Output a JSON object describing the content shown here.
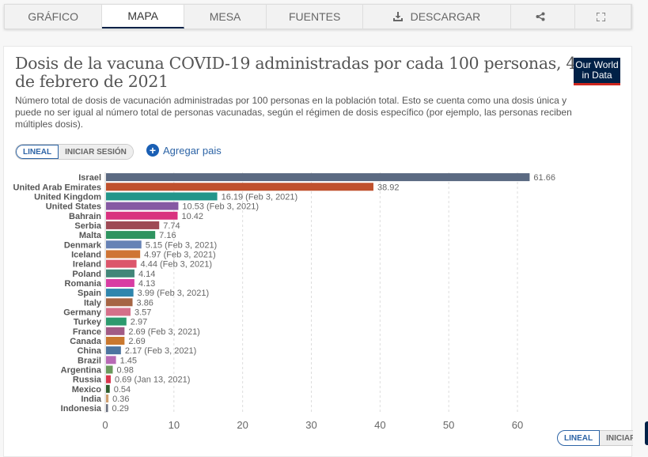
{
  "tabs": [
    {
      "label": "GRÁFICO",
      "icon": null,
      "active": false
    },
    {
      "label": "MAPA",
      "icon": null,
      "active": true
    },
    {
      "label": "MESA",
      "icon": null,
      "active": false
    },
    {
      "label": "FUENTES",
      "icon": null,
      "active": false
    },
    {
      "label": "DESCARGAR",
      "icon": "download-icon",
      "active": false
    },
    {
      "label": "",
      "icon": "share-icon",
      "active": false
    },
    {
      "label": "",
      "icon": "fullscreen-icon",
      "active": false
    }
  ],
  "header": {
    "title": "Dosis de la vacuna COVID-19 administradas por cada 100 personas, 4 de febrero de 2021",
    "subtitle": "Número total de dosis de vacunación administradas por 100 personas en la población total. Esto se cuenta como una dosis única y puede no ser igual al número total de personas vacunadas, según el régimen de dosis específico (por ejemplo, las personas reciben múltiples dosis).",
    "logo_line1": "Our World",
    "logo_line2": "in Data"
  },
  "controls": {
    "scale_linear": "LINEAL",
    "scale_log": "INICIAR SESIÓN",
    "add_country": "Agregar pais",
    "bottom_scale_linear": "LINEAL",
    "bottom_scale_log": "INICIAR"
  },
  "colors": {
    "brand": "#002147",
    "brand_accent": "#ce261e",
    "link": "#2d64a6"
  },
  "chart_data": {
    "type": "bar",
    "orientation": "horizontal",
    "title": "Dosis de la vacuna COVID-19 administradas por cada 100 personas, 4 de febrero de 2021",
    "xlabel": "",
    "ylabel": "",
    "xlim": [
      0,
      65
    ],
    "xticks": [
      0,
      10,
      20,
      30,
      40,
      50,
      60
    ],
    "grid": "vertical-dashed",
    "categories": [
      "Israel",
      "United Arab Emirates",
      "United Kingdom",
      "United States",
      "Bahrain",
      "Serbia",
      "Malta",
      "Denmark",
      "Iceland",
      "Ireland",
      "Poland",
      "Romania",
      "Spain",
      "Italy",
      "Germany",
      "Turkey",
      "France",
      "Canada",
      "China",
      "Brazil",
      "Argentina",
      "Russia",
      "Mexico",
      "India",
      "Indonesia"
    ],
    "values": [
      61.66,
      38.92,
      16.19,
      10.53,
      10.42,
      7.74,
      7.16,
      5.15,
      4.97,
      4.44,
      4.14,
      4.13,
      3.99,
      3.86,
      3.57,
      2.97,
      2.69,
      2.69,
      2.17,
      1.45,
      0.98,
      0.69,
      0.54,
      0.36,
      0.29
    ],
    "notes": [
      "",
      "",
      "(Feb 3, 2021)",
      "(Feb 3, 2021)",
      "",
      "",
      "",
      "(Feb 3, 2021)",
      "(Feb 3, 2021)",
      "(Feb 3, 2021)",
      "",
      "",
      "(Feb 3, 2021)",
      "",
      "",
      "",
      "(Feb 3, 2021)",
      "",
      "(Feb 3, 2021)",
      "",
      "",
      "(Jan 13, 2021)",
      "",
      "",
      ""
    ],
    "bar_colors": [
      "#5b6a82",
      "#c0512d",
      "#23958a",
      "#8659a3",
      "#d9327f",
      "#9e4a55",
      "#2e9460",
      "#6682b5",
      "#cf7535",
      "#dc566b",
      "#428679",
      "#d83da3",
      "#2f86ad",
      "#a66544",
      "#d5708a",
      "#2c9a6e",
      "#a15b85",
      "#c9782f",
      "#4c75a0",
      "#b86ab5",
      "#6a9a5c",
      "#d9364e",
      "#2d5e2d",
      "#d0a070",
      "#6b7180"
    ]
  }
}
